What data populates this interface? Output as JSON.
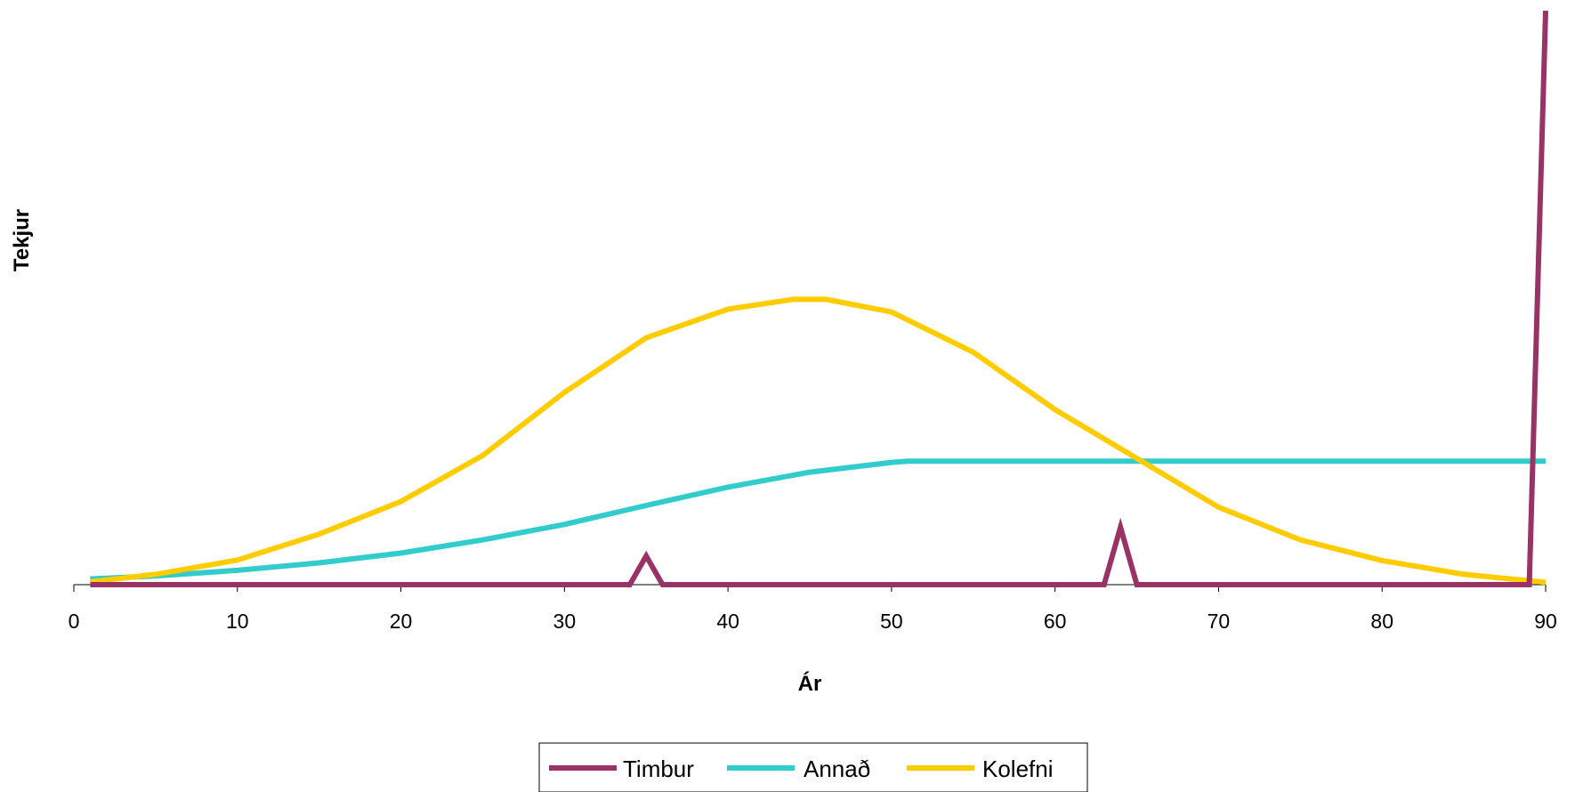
{
  "chart_data": {
    "type": "line",
    "xlabel": "Ár",
    "ylabel": "Tekjur",
    "xlim": [
      0,
      90
    ],
    "ylim": [
      0,
      1
    ],
    "xticks": [
      0,
      10,
      20,
      30,
      40,
      50,
      60,
      70,
      80,
      90
    ],
    "y_tick_labels_shown": false,
    "grid": false,
    "legend_position": "bottom",
    "series": [
      {
        "name": "Timbur",
        "color": "#993366",
        "x": [
          1,
          34,
          35,
          36,
          63,
          64,
          65,
          89,
          90
        ],
        "y": [
          0,
          0,
          0.05,
          0,
          0,
          0.1,
          0,
          0,
          1.0
        ]
      },
      {
        "name": "Annað",
        "color": "#33CCCC",
        "x": [
          1,
          5,
          10,
          15,
          20,
          25,
          30,
          35,
          40,
          45,
          50,
          51,
          60,
          70,
          80,
          90
        ],
        "y": [
          0.01,
          0.015,
          0.025,
          0.038,
          0.055,
          0.078,
          0.105,
          0.138,
          0.17,
          0.196,
          0.213,
          0.215,
          0.215,
          0.215,
          0.215,
          0.215
        ]
      },
      {
        "name": "Kolefni",
        "color": "#FFCC00",
        "x": [
          1,
          5,
          10,
          15,
          20,
          25,
          30,
          35,
          40,
          44,
          46,
          50,
          55,
          60,
          65,
          70,
          75,
          80,
          85,
          90
        ],
        "y": [
          0.005,
          0.018,
          0.043,
          0.088,
          0.145,
          0.225,
          0.335,
          0.43,
          0.48,
          0.497,
          0.497,
          0.475,
          0.405,
          0.305,
          0.22,
          0.135,
          0.078,
          0.042,
          0.018,
          0.004
        ]
      }
    ]
  }
}
